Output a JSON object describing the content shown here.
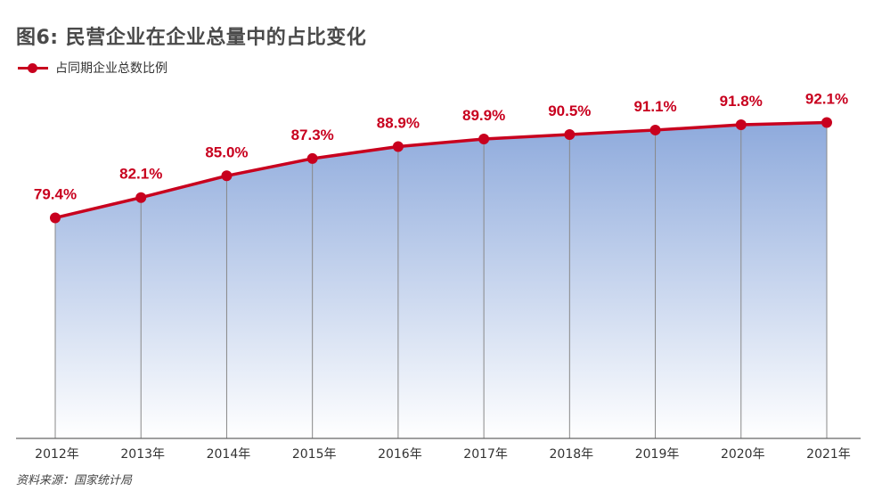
{
  "title": "图6: 民营企业在企业总量中的占比变化",
  "legend": {
    "label": "占同期企业总数比例"
  },
  "source": "资料来源：国家统计局",
  "colors": {
    "line": "#c8001e",
    "area_top": "#8eaadc",
    "area_bottom": "#ffffff",
    "grid": "#888888",
    "axis": "#666666"
  },
  "chart_data": {
    "type": "area",
    "title": "图6: 民营企业在企业总量中的占比变化",
    "categories": [
      "2012年",
      "2013年",
      "2014年",
      "2015年",
      "2016年",
      "2017年",
      "2018年",
      "2019年",
      "2020年",
      "2021年"
    ],
    "series": [
      {
        "name": "占同期企业总数比例",
        "values": [
          79.4,
          82.1,
          85.0,
          87.3,
          88.9,
          89.9,
          90.5,
          91.1,
          91.8,
          92.1
        ],
        "labels": [
          "79.4%",
          "82.1%",
          "85.0%",
          "87.3%",
          "88.9%",
          "89.9%",
          "90.5%",
          "91.1%",
          "91.8%",
          "92.1%"
        ]
      }
    ],
    "xlabel": "",
    "ylabel": "",
    "ylim": [
      50,
      100
    ],
    "grid": "vertical",
    "legend_position": "top-left"
  }
}
